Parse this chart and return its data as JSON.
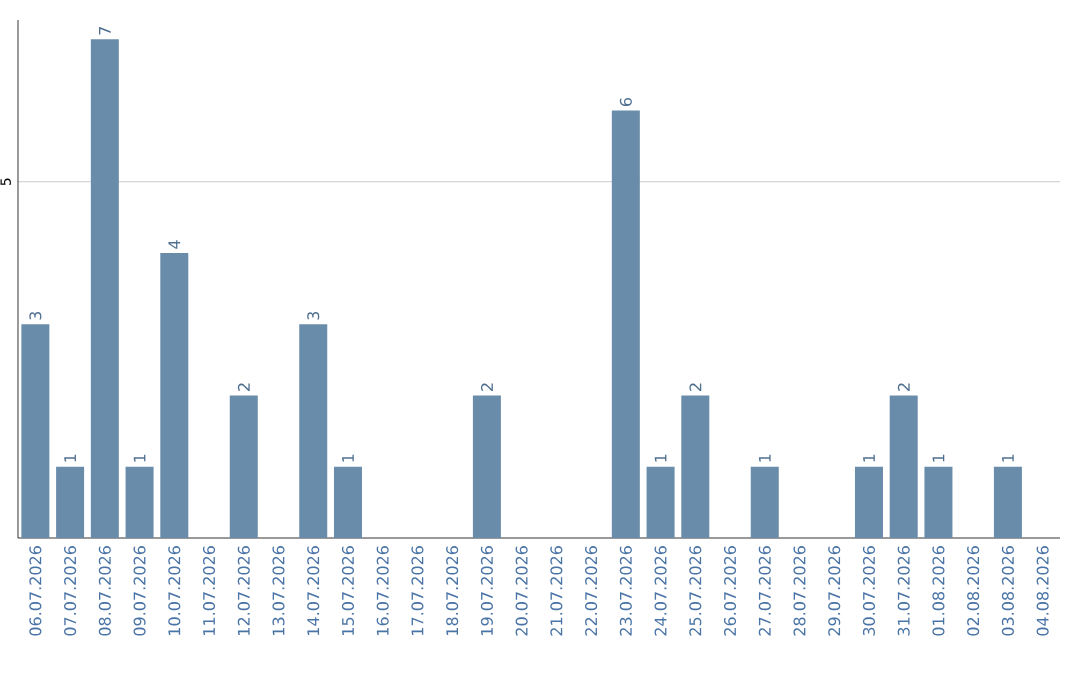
{
  "chart_data": {
    "type": "bar",
    "categories": [
      "06.07.2026",
      "07.07.2026",
      "08.07.2026",
      "09.07.2026",
      "10.07.2026",
      "11.07.2026",
      "12.07.2026",
      "13.07.2026",
      "14.07.2026",
      "15.07.2026",
      "16.07.2026",
      "17.07.2026",
      "18.07.2026",
      "19.07.2026",
      "20.07.2026",
      "21.07.2026",
      "22.07.2026",
      "23.07.2026",
      "24.07.2026",
      "25.07.2026",
      "26.07.2026",
      "27.07.2026",
      "28.07.2026",
      "29.07.2026",
      "30.07.2026",
      "31.07.2026",
      "01.08.2026",
      "02.08.2026",
      "03.08.2026",
      "04.08.2026"
    ],
    "values": [
      3,
      1,
      7,
      1,
      4,
      0,
      2,
      0,
      3,
      1,
      0,
      0,
      0,
      2,
      0,
      0,
      0,
      6,
      1,
      2,
      0,
      1,
      0,
      0,
      1,
      2,
      1,
      0,
      1,
      0
    ],
    "value_labels": [
      "3",
      "1",
      "7",
      "1",
      "4",
      null,
      "2",
      null,
      "3",
      "1",
      null,
      null,
      null,
      "2",
      null,
      null,
      null,
      "6",
      "1",
      "2",
      null,
      "1",
      null,
      null,
      "1",
      "2",
      "1",
      null,
      "1",
      null
    ],
    "color": "#6a8cab",
    "ylim": [
      0,
      7.27
    ],
    "yticks": [
      5
    ],
    "grid": "y"
  }
}
